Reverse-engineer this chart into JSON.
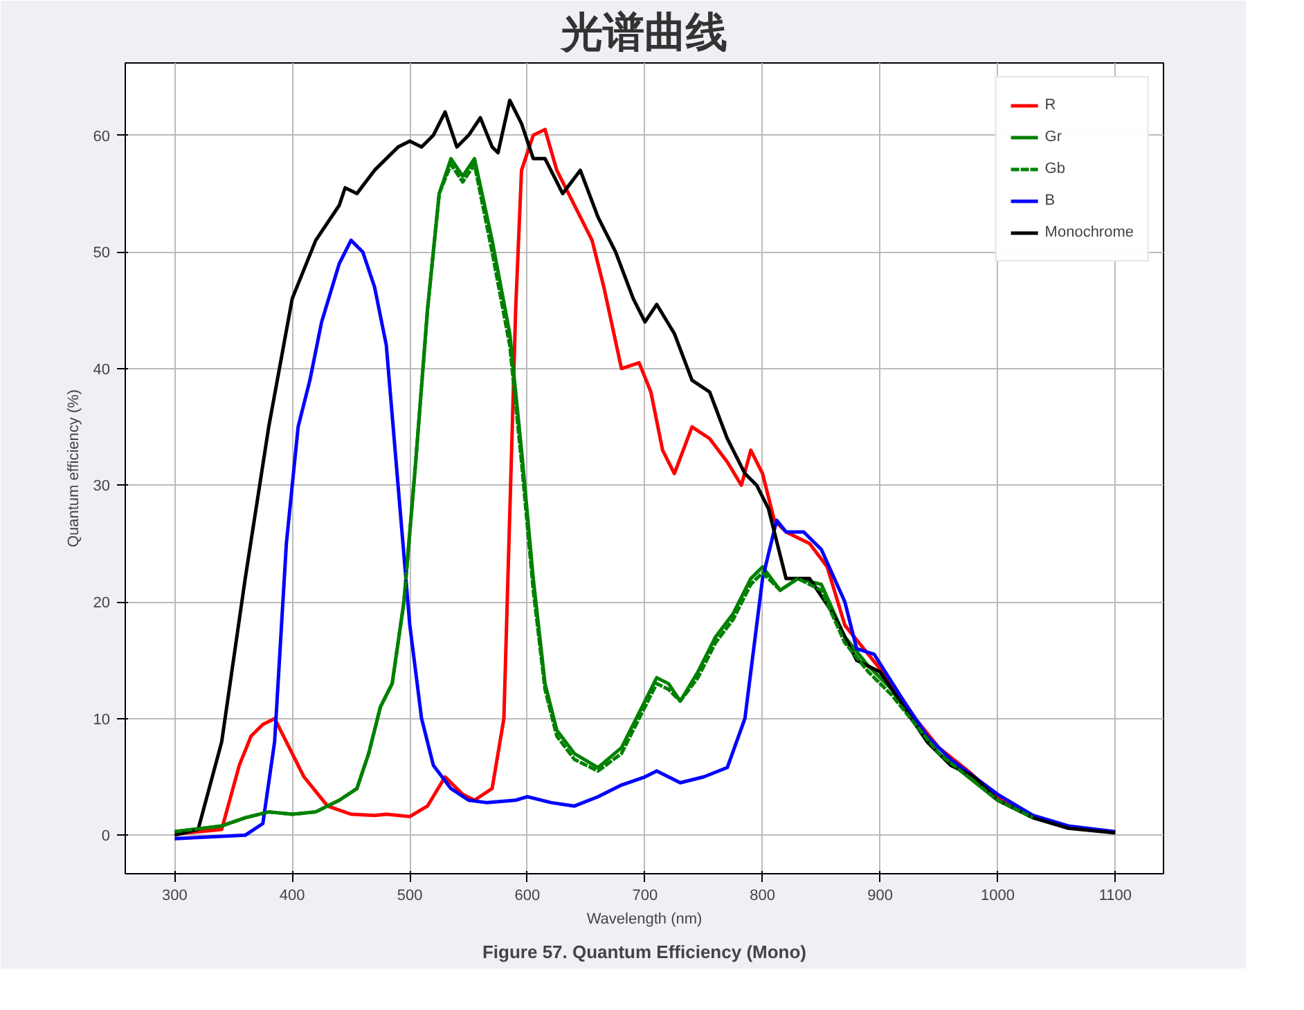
{
  "chart_data": {
    "type": "line",
    "title": "光谱曲线",
    "xlabel": "Wavelength (nm)",
    "ylabel": "Quantum efficiency (%)",
    "annotations": [
      "Figure 57. Quantum Efficiency (Mono)"
    ],
    "xlim": [
      258,
      1141
    ],
    "ylim": [
      -3.3,
      66.2
    ],
    "xticks": [
      300,
      400,
      500,
      600,
      700,
      800,
      900,
      1000,
      1100
    ],
    "yticks": [
      0,
      10,
      20,
      30,
      40,
      50,
      60
    ],
    "grid": true,
    "legend": "top right",
    "line_style": "solid",
    "series": [
      {
        "name": "R",
        "color": "#ff0000",
        "x": [
          300,
          340,
          355,
          365,
          375,
          385,
          395,
          410,
          430,
          450,
          470,
          480,
          500,
          515,
          530,
          545,
          555,
          570,
          580,
          590,
          595,
          605,
          615,
          625,
          640,
          655,
          665,
          680,
          695,
          705,
          715,
          725,
          740,
          755,
          770,
          782,
          790,
          800,
          810,
          820,
          840,
          855,
          870,
          890,
          910,
          930,
          950,
          975,
          1000,
          1030
        ],
        "values": [
          0.1,
          0.5,
          6,
          8.5,
          9.5,
          10,
          8,
          5,
          2.5,
          1.8,
          1.7,
          1.8,
          1.6,
          2.5,
          5,
          3.5,
          3,
          4,
          10,
          45,
          57,
          60,
          60.5,
          57,
          54,
          51,
          47,
          40,
          40.5,
          38,
          33,
          31,
          35,
          34,
          32,
          30,
          33,
          31,
          27,
          26,
          25,
          23,
          18,
          15.5,
          13,
          10,
          7.5,
          5.5,
          3.2,
          1.6
        ]
      },
      {
        "name": "Gr",
        "color": "#008000",
        "x": [
          300,
          340,
          360,
          380,
          400,
          420,
          440,
          455,
          465,
          475,
          485,
          495,
          505,
          515,
          525,
          535,
          545,
          555,
          570,
          585,
          595,
          605,
          615,
          625,
          640,
          660,
          680,
          700,
          710,
          720,
          730,
          745,
          760,
          775,
          790,
          800,
          815,
          830,
          850,
          870,
          890,
          910,
          930,
          950,
          975,
          1000,
          1030
        ],
        "values": [
          0.3,
          0.8,
          1.5,
          2,
          1.8,
          2,
          3,
          4,
          7,
          11,
          13,
          20,
          32,
          45,
          55,
          58,
          56.5,
          58,
          51,
          43,
          33,
          22,
          13,
          9,
          7,
          5.8,
          7.5,
          11.5,
          13.5,
          13,
          11.5,
          14,
          17,
          19,
          22,
          23,
          21,
          22,
          21.5,
          17,
          14.5,
          12.5,
          9.5,
          7,
          5,
          3,
          1.5
        ]
      },
      {
        "name": "Gb",
        "color": "#008000",
        "line_style": "dashed",
        "x": [
          300,
          340,
          360,
          380,
          400,
          420,
          440,
          455,
          465,
          475,
          485,
          495,
          505,
          515,
          525,
          535,
          545,
          555,
          570,
          585,
          595,
          605,
          615,
          625,
          640,
          660,
          680,
          700,
          710,
          720,
          730,
          745,
          760,
          775,
          790,
          800,
          815,
          830,
          850,
          870,
          890,
          910,
          930,
          950,
          975,
          1000,
          1030
        ],
        "values": [
          0.3,
          0.8,
          1.5,
          2,
          1.8,
          2,
          3,
          4,
          7,
          11,
          13,
          20,
          32,
          45,
          55,
          57.5,
          56,
          57.5,
          50,
          42,
          32,
          21,
          12.5,
          8.5,
          6.5,
          5.5,
          7,
          11,
          13,
          12.5,
          11.5,
          13.5,
          16.5,
          18.5,
          21.5,
          22.5,
          21,
          22,
          21,
          16.5,
          14,
          12,
          9.5,
          7,
          5,
          3,
          1.5
        ]
      },
      {
        "name": "B",
        "color": "#0000ff",
        "x": [
          300,
          360,
          375,
          385,
          395,
          405,
          415,
          425,
          440,
          450,
          460,
          470,
          480,
          490,
          500,
          510,
          520,
          535,
          550,
          565,
          590,
          600,
          620,
          640,
          660,
          680,
          700,
          710,
          730,
          750,
          770,
          785,
          800,
          812,
          820,
          835,
          850,
          870,
          880,
          895,
          920,
          940,
          960,
          980,
          1000,
          1030,
          1060,
          1100
        ],
        "values": [
          -0.3,
          0,
          1,
          8,
          25,
          35,
          39,
          44,
          49,
          51,
          50,
          47,
          42,
          30,
          18,
          10,
          6,
          4,
          3,
          2.8,
          3,
          3.3,
          2.8,
          2.5,
          3.3,
          4.3,
          5,
          5.5,
          4.5,
          5,
          5.8,
          10,
          22,
          27,
          26,
          26,
          24.5,
          20,
          16,
          15.5,
          11.5,
          8.5,
          6.5,
          5,
          3.5,
          1.7,
          0.8,
          0.3
        ]
      },
      {
        "name": "Monochrome",
        "color": "#000000",
        "x": [
          300,
          320,
          340,
          360,
          380,
          400,
          420,
          440,
          445,
          455,
          470,
          490,
          500,
          510,
          520,
          530,
          540,
          550,
          560,
          570,
          575,
          585,
          595,
          605,
          615,
          630,
          645,
          660,
          675,
          690,
          700,
          710,
          725,
          740,
          755,
          770,
          785,
          795,
          805,
          815,
          820,
          840,
          860,
          880,
          900,
          920,
          940,
          960,
          980,
          1000,
          1030,
          1060,
          1100
        ],
        "values": [
          0,
          0.5,
          8,
          22,
          35,
          46,
          51,
          54,
          55.5,
          55,
          57,
          59,
          59.5,
          59,
          60,
          62,
          59,
          60,
          61.5,
          59,
          58.5,
          63,
          61,
          58,
          58,
          55,
          57,
          53,
          50,
          46,
          44,
          45.5,
          43,
          39,
          38,
          34,
          31,
          30,
          28,
          24,
          22,
          22,
          19,
          15,
          14,
          11,
          8,
          6,
          5,
          3,
          1.5,
          0.6,
          0.2
        ]
      }
    ]
  }
}
